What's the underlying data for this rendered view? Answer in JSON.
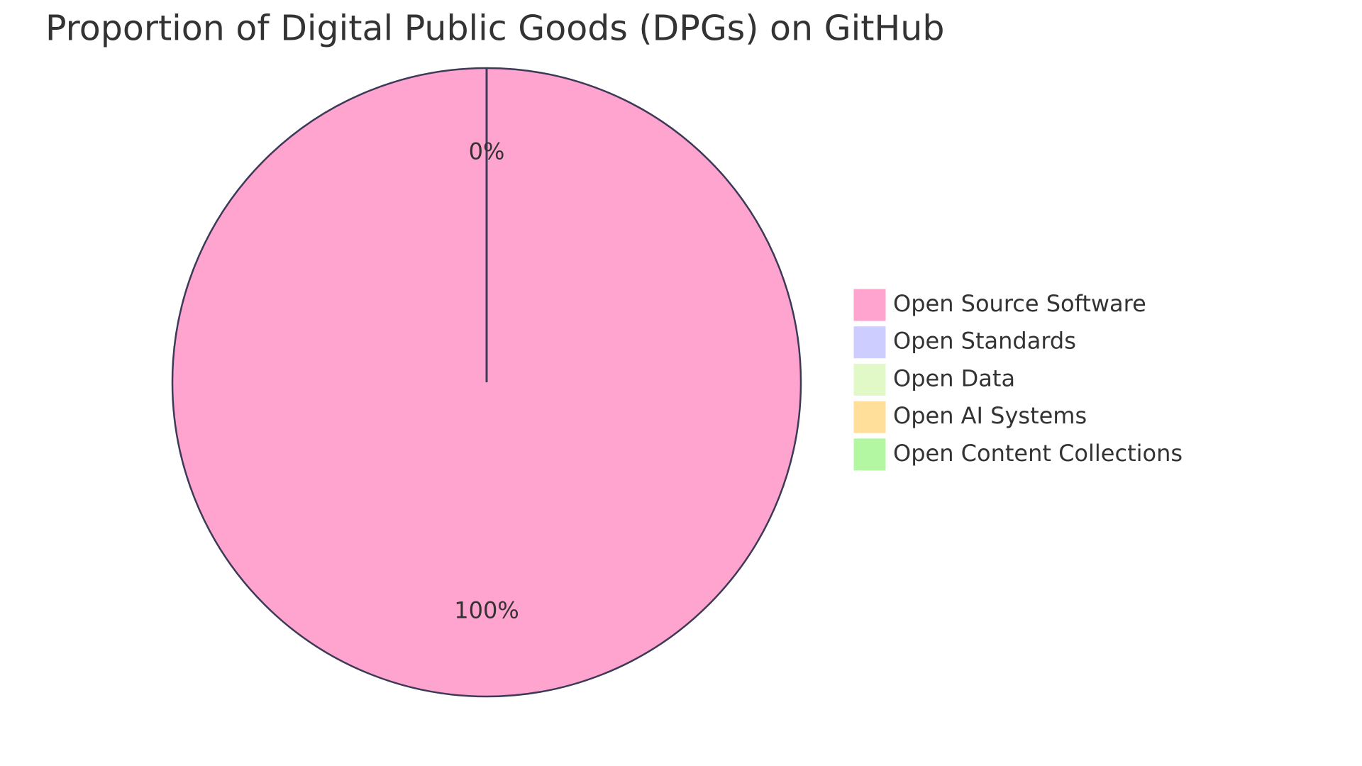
{
  "chart_data": {
    "type": "pie",
    "title": "Proportion of Digital Public Goods (DPGs) on GitHub",
    "categories": [
      "Open Source Software",
      "Open Standards",
      "Open Data",
      "Open AI Systems",
      "Open Content Collections"
    ],
    "values": [
      100,
      0,
      0,
      0,
      0
    ],
    "value_labels": [
      "100%",
      "0%",
      null,
      null,
      null
    ],
    "colors": [
      "#ffa3cf",
      "#cdcdff",
      "#e0f9c7",
      "#ffdf99",
      "#b3f7a3"
    ],
    "legend": "right"
  }
}
